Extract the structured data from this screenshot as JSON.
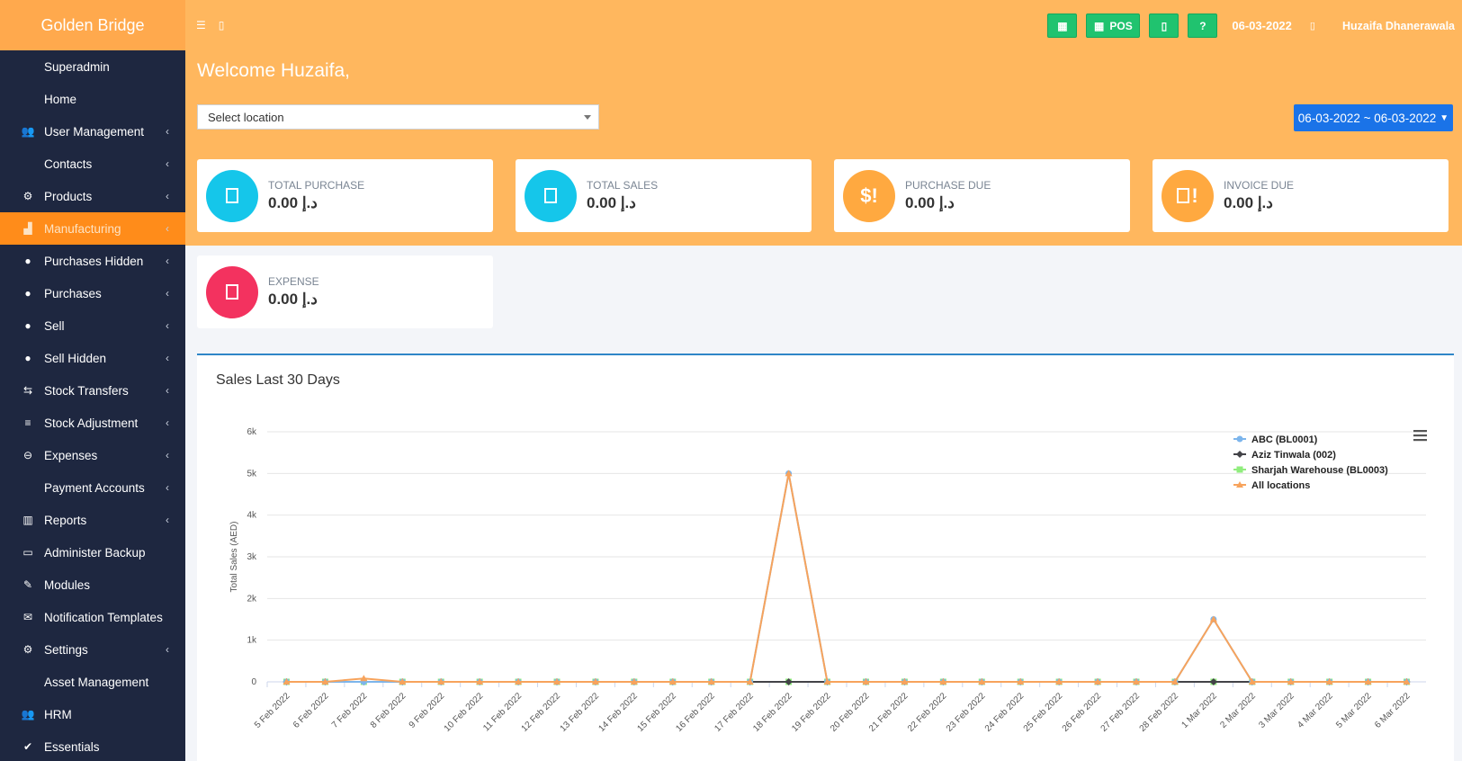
{
  "brand": "Golden Bridge",
  "sidebar": {
    "items": [
      {
        "label": "Superadmin",
        "icon": "",
        "chevron": false
      },
      {
        "label": "Home",
        "icon": "",
        "chevron": false
      },
      {
        "label": "User Management",
        "icon": "👥",
        "chevron": true
      },
      {
        "label": "Contacts",
        "icon": "",
        "chevron": true
      },
      {
        "label": "Products",
        "icon": "⚙",
        "chevron": true
      },
      {
        "label": "Manufacturing",
        "icon": "▟",
        "chevron": true,
        "active": true
      },
      {
        "label": "Purchases Hidden",
        "icon": "●",
        "chevron": true
      },
      {
        "label": "Purchases",
        "icon": "●",
        "chevron": true
      },
      {
        "label": "Sell",
        "icon": "●",
        "chevron": true
      },
      {
        "label": "Sell Hidden",
        "icon": "●",
        "chevron": true
      },
      {
        "label": "Stock Transfers",
        "icon": "⇆",
        "chevron": true
      },
      {
        "label": "Stock Adjustment",
        "icon": "≡",
        "chevron": true
      },
      {
        "label": "Expenses",
        "icon": "⊖",
        "chevron": true
      },
      {
        "label": "Payment Accounts",
        "icon": "",
        "chevron": true
      },
      {
        "label": "Reports",
        "icon": "▥",
        "chevron": true
      },
      {
        "label": "Administer Backup",
        "icon": "▭",
        "chevron": false
      },
      {
        "label": "Modules",
        "icon": "✎",
        "chevron": false
      },
      {
        "label": "Notification Templates",
        "icon": "✉",
        "chevron": false
      },
      {
        "label": "Settings",
        "icon": "⚙",
        "chevron": true
      },
      {
        "label": "Asset Management",
        "icon": "",
        "chevron": false
      },
      {
        "label": "HRM",
        "icon": "👥",
        "chevron": false
      },
      {
        "label": "Essentials",
        "icon": "✔",
        "chevron": false
      }
    ]
  },
  "topbar": {
    "pos_label": "POS",
    "date": "06-03-2022",
    "user": "Huzaifa Dhanerawala"
  },
  "welcome": "Welcome Huzaifa,",
  "location_select": {
    "placeholder": "Select location"
  },
  "date_range": "06-03-2022 ~ 06-03-2022",
  "cards": [
    {
      "label": "TOTAL PURCHASE",
      "value": "0.00 د.إ",
      "color": "#15c6ea",
      "icon": "box"
    },
    {
      "label": "TOTAL SALES",
      "value": "0.00 د.إ",
      "color": "#15c6ea",
      "icon": "box"
    },
    {
      "label": "PURCHASE DUE",
      "value": "0.00 د.إ",
      "color": "#ffa940",
      "icon": "$!"
    },
    {
      "label": "INVOICE DUE",
      "value": "0.00 د.إ",
      "color": "#ffa940",
      "icon": "box!"
    },
    {
      "label": "EXPENSE",
      "value": "0.00 د.إ",
      "color": "#f3325f",
      "icon": "box"
    }
  ],
  "chart_panel_title": "Sales Last 30 Days",
  "chart_data": {
    "type": "line",
    "title": "",
    "xlabel": "",
    "ylabel": "Total Sales (AED)",
    "ylim": [
      0,
      6000
    ],
    "yticks": [
      "0",
      "1k",
      "2k",
      "3k",
      "4k",
      "5k",
      "6k"
    ],
    "categories": [
      "5 Feb 2022",
      "6 Feb 2022",
      "7 Feb 2022",
      "8 Feb 2022",
      "9 Feb 2022",
      "10 Feb 2022",
      "11 Feb 2022",
      "12 Feb 2022",
      "13 Feb 2022",
      "14 Feb 2022",
      "15 Feb 2022",
      "16 Feb 2022",
      "17 Feb 2022",
      "18 Feb 2022",
      "19 Feb 2022",
      "20 Feb 2022",
      "21 Feb 2022",
      "22 Feb 2022",
      "23 Feb 2022",
      "24 Feb 2022",
      "25 Feb 2022",
      "26 Feb 2022",
      "27 Feb 2022",
      "28 Feb 2022",
      "1 Mar 2022",
      "2 Mar 2022",
      "3 Mar 2022",
      "4 Mar 2022",
      "5 Mar 2022",
      "6 Mar 2022"
    ],
    "legend_position": "top-right",
    "series": [
      {
        "name": "ABC (BL0001)",
        "color": "#7cb5ec",
        "marker": "circle",
        "values": [
          0,
          0,
          0,
          0,
          0,
          0,
          0,
          0,
          0,
          0,
          0,
          0,
          0,
          5000,
          0,
          0,
          0,
          0,
          0,
          0,
          0,
          0,
          0,
          0,
          1500,
          0,
          0,
          0,
          0,
          0
        ]
      },
      {
        "name": "Aziz Tinwala (002)",
        "color": "#434348",
        "marker": "diamond",
        "values": [
          0,
          0,
          0,
          0,
          0,
          0,
          0,
          0,
          0,
          0,
          0,
          0,
          0,
          0,
          0,
          0,
          0,
          0,
          0,
          0,
          0,
          0,
          0,
          0,
          0,
          0,
          0,
          0,
          0,
          0
        ]
      },
      {
        "name": "Sharjah Warehouse (BL0003)",
        "color": "#90ed7d",
        "marker": "square",
        "values": [
          0,
          0,
          0,
          0,
          0,
          0,
          0,
          0,
          0,
          0,
          0,
          0,
          0,
          0,
          0,
          0,
          0,
          0,
          0,
          0,
          0,
          0,
          0,
          0,
          0,
          0,
          0,
          0,
          0,
          0
        ]
      },
      {
        "name": "All locations",
        "color": "#f7a35c",
        "marker": "triangle",
        "values": [
          0,
          0,
          80,
          0,
          0,
          0,
          0,
          0,
          0,
          0,
          0,
          0,
          0,
          5000,
          0,
          0,
          0,
          0,
          0,
          0,
          0,
          0,
          0,
          0,
          1500,
          0,
          0,
          0,
          0,
          0
        ]
      }
    ]
  }
}
